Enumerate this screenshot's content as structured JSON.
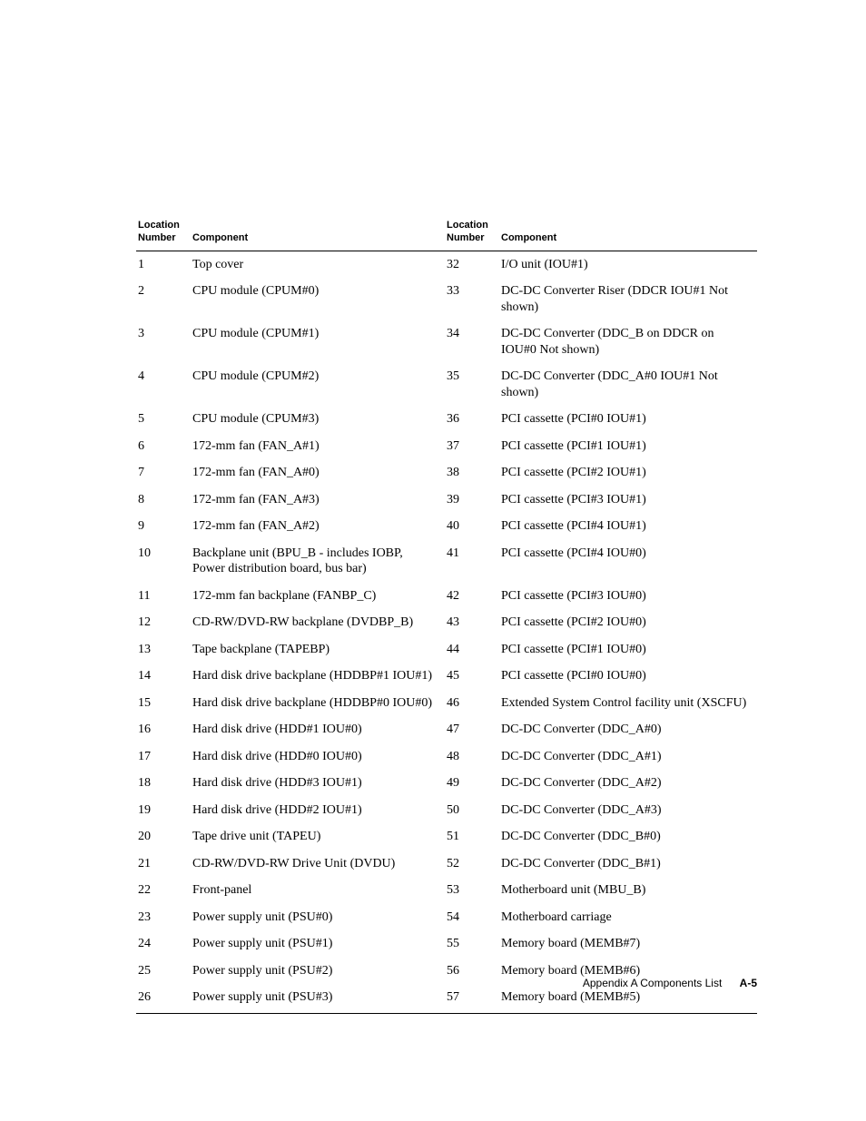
{
  "table": {
    "headers": {
      "left_num": "Location\nNumber",
      "left_comp": "Component",
      "right_num": "Location\nNumber",
      "right_comp": "Component"
    },
    "rows": [
      {
        "l_num": "1",
        "l_comp": "Top cover",
        "r_num": "32",
        "r_comp": "I/O unit (IOU#1)"
      },
      {
        "l_num": "2",
        "l_comp": "CPU module (CPUM#0)",
        "r_num": "33",
        "r_comp": "DC-DC Converter Riser (DDCR IOU#1 Not shown)"
      },
      {
        "l_num": "3",
        "l_comp": "CPU module (CPUM#1)",
        "r_num": "34",
        "r_comp": "DC-DC Converter (DDC_B on DDCR on IOU#0 Not shown)"
      },
      {
        "l_num": "4",
        "l_comp": "CPU module (CPUM#2)",
        "r_num": "35",
        "r_comp": "DC-DC Converter (DDC_A#0 IOU#1 Not shown)"
      },
      {
        "l_num": "5",
        "l_comp": "CPU module (CPUM#3)",
        "r_num": "36",
        "r_comp": "PCI cassette (PCI#0 IOU#1)"
      },
      {
        "l_num": "6",
        "l_comp": "172-mm fan (FAN_A#1)",
        "r_num": "37",
        "r_comp": "PCI cassette (PCI#1 IOU#1)"
      },
      {
        "l_num": "7",
        "l_comp": "172-mm fan (FAN_A#0)",
        "r_num": "38",
        "r_comp": "PCI cassette (PCI#2 IOU#1)"
      },
      {
        "l_num": "8",
        "l_comp": "172-mm fan (FAN_A#3)",
        "r_num": "39",
        "r_comp": "PCI cassette (PCI#3 IOU#1)"
      },
      {
        "l_num": "9",
        "l_comp": "172-mm fan (FAN_A#2)",
        "r_num": "40",
        "r_comp": "PCI cassette (PCI#4 IOU#1)"
      },
      {
        "l_num": "10",
        "l_comp": "Backplane unit (BPU_B - includes IOBP, Power distribution board, bus bar)",
        "r_num": "41",
        "r_comp": "PCI cassette (PCI#4 IOU#0)"
      },
      {
        "l_num": "11",
        "l_comp": "172-mm fan backplane (FANBP_C)",
        "r_num": "42",
        "r_comp": "PCI cassette (PCI#3 IOU#0)"
      },
      {
        "l_num": "12",
        "l_comp": "CD-RW/DVD-RW backplane (DVDBP_B)",
        "r_num": "43",
        "r_comp": "PCI cassette (PCI#2 IOU#0)"
      },
      {
        "l_num": "13",
        "l_comp": "Tape backplane (TAPEBP)",
        "r_num": "44",
        "r_comp": "PCI cassette (PCI#1 IOU#0)"
      },
      {
        "l_num": "14",
        "l_comp": "Hard disk drive backplane (HDDBP#1 IOU#1)",
        "r_num": "45",
        "r_comp": "PCI cassette (PCI#0 IOU#0)"
      },
      {
        "l_num": "15",
        "l_comp": "Hard disk drive backplane (HDDBP#0 IOU#0)",
        "r_num": "46",
        "r_comp": "Extended System Control facility unit (XSCFU)"
      },
      {
        "l_num": "16",
        "l_comp": "Hard disk drive (HDD#1 IOU#0)",
        "r_num": "47",
        "r_comp": "DC-DC Converter (DDC_A#0)"
      },
      {
        "l_num": "17",
        "l_comp": "Hard disk drive (HDD#0 IOU#0)",
        "r_num": "48",
        "r_comp": "DC-DC Converter (DDC_A#1)"
      },
      {
        "l_num": "18",
        "l_comp": "Hard disk drive (HDD#3 IOU#1)",
        "r_num": "49",
        "r_comp": "DC-DC Converter (DDC_A#2)"
      },
      {
        "l_num": "19",
        "l_comp": "Hard disk drive (HDD#2 IOU#1)",
        "r_num": "50",
        "r_comp": "DC-DC Converter (DDC_A#3)"
      },
      {
        "l_num": "20",
        "l_comp": "Tape drive unit (TAPEU)",
        "r_num": "51",
        "r_comp": "DC-DC Converter (DDC_B#0)"
      },
      {
        "l_num": "21",
        "l_comp": "CD-RW/DVD-RW Drive Unit (DVDU)",
        "r_num": "52",
        "r_comp": "DC-DC Converter (DDC_B#1)"
      },
      {
        "l_num": "22",
        "l_comp": "Front-panel",
        "r_num": "53",
        "r_comp": "Motherboard unit (MBU_B)"
      },
      {
        "l_num": "23",
        "l_comp": "Power supply unit (PSU#0)",
        "r_num": "54",
        "r_comp": "Motherboard carriage"
      },
      {
        "l_num": "24",
        "l_comp": "Power supply unit (PSU#1)",
        "r_num": "55",
        "r_comp": "Memory board (MEMB#7)"
      },
      {
        "l_num": "25",
        "l_comp": "Power supply unit (PSU#2)",
        "r_num": "56",
        "r_comp": "Memory board (MEMB#6)"
      },
      {
        "l_num": "26",
        "l_comp": "Power supply unit (PSU#3)",
        "r_num": "57",
        "r_comp": "Memory board (MEMB#5)"
      }
    ]
  },
  "footer": {
    "text": "Appendix A    Components List",
    "page": "A-5"
  }
}
